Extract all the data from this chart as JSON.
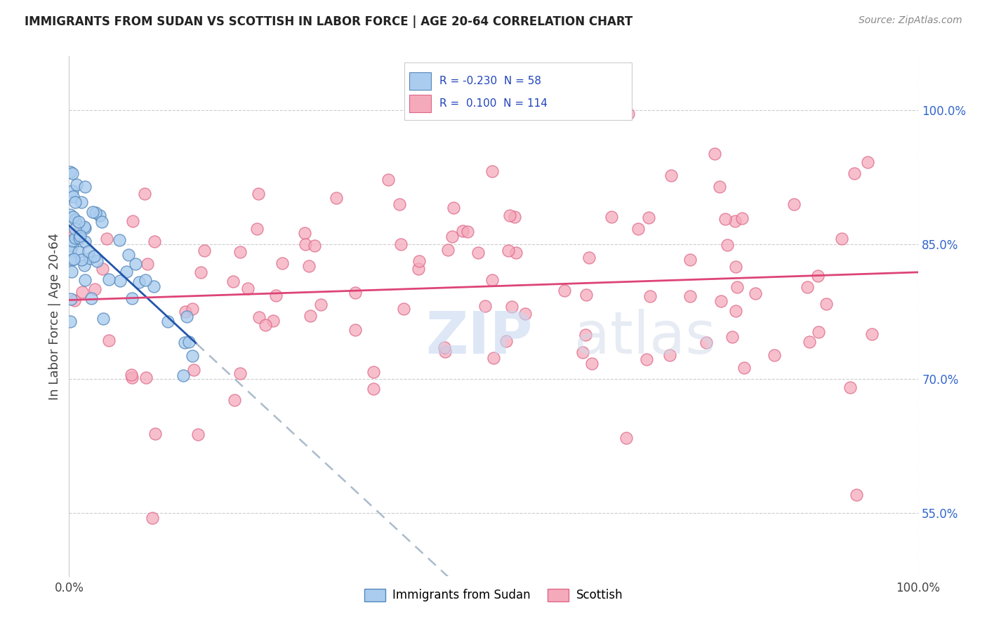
{
  "title": "IMMIGRANTS FROM SUDAN VS SCOTTISH IN LABOR FORCE | AGE 20-64 CORRELATION CHART",
  "source": "Source: ZipAtlas.com",
  "ylabel": "In Labor Force | Age 20-64",
  "right_yticks": [
    55.0,
    70.0,
    85.0,
    100.0
  ],
  "r_sudan": -0.23,
  "n_sudan": 58,
  "r_scottish": 0.1,
  "n_scottish": 114,
  "legend_labels": [
    "Immigrants from Sudan",
    "Scottish"
  ],
  "sudan_color": "#aaccee",
  "scottish_color": "#f5aabb",
  "sudan_edge": "#5588bb",
  "scottish_edge": "#dd6688",
  "sudan_line_color": "#2255aa",
  "scottish_line_color": "#dd4477",
  "dashed_line_color": "#aabbcc",
  "sudan_seed": 42,
  "scottish_seed": 99,
  "xlim": [
    0,
    100
  ],
  "ylim": [
    48,
    106
  ],
  "grid_color": "#cccccc",
  "bg_color": "#ffffff",
  "title_fontsize": 12,
  "source_fontsize": 10,
  "tick_fontsize": 12,
  "ylabel_fontsize": 13,
  "legend_fontsize": 11
}
